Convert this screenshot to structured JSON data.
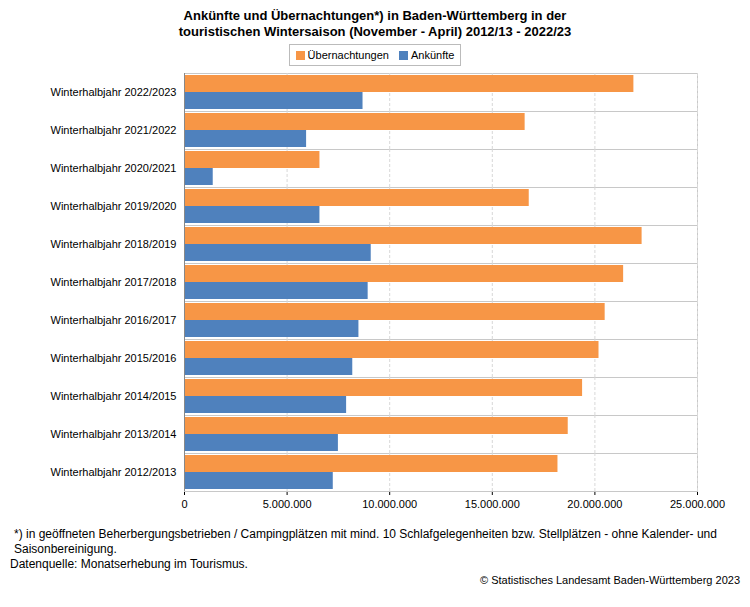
{
  "chart_data": {
    "type": "bar",
    "orientation": "horizontal",
    "title": "Ankünfte und Übernachtungen*) in Baden-Württemberg in der touristischen Wintersaison (November - April) 2012/13 - 2022/23",
    "categories": [
      "Winterhalbjahr 2022/2023",
      "Winterhalbjahr 2021/2022",
      "Winterhalbjahr 2020/2021",
      "Winterhalbjahr 2019/2020",
      "Winterhalbjahr 2018/2019",
      "Winterhalbjahr 2017/2018",
      "Winterhalbjahr 2016/2017",
      "Winterhalbjahr 2015/2016",
      "Winterhalbjahr 2014/2015",
      "Winterhalbjahr 2013/2014",
      "Winterhalbjahr 2012/2013"
    ],
    "series": [
      {
        "name": "Übernachtungen",
        "color": "#F79646",
        "values": [
          21900000,
          16600000,
          6600000,
          16800000,
          22300000,
          21400000,
          20500000,
          20200000,
          19400000,
          18700000,
          18200000
        ]
      },
      {
        "name": "Ankünfte",
        "color": "#4F81BD",
        "values": [
          8700000,
          5950000,
          1400000,
          6600000,
          9100000,
          8950000,
          8500000,
          8200000,
          7900000,
          7500000,
          7250000
        ]
      }
    ],
    "xlim": [
      0,
      25000000
    ],
    "xticks": [
      0,
      {
        "value": 5000000,
        "label": "5.000.000"
      },
      {
        "value": 10000000,
        "label": "10.000.000"
      },
      {
        "value": 15000000,
        "label": "15.000.000"
      },
      {
        "value": 20000000,
        "label": "20.000.000"
      },
      {
        "value": 25000000,
        "label": "25.000.000"
      }
    ],
    "grid": true,
    "legend": "top",
    "data_labels": false,
    "notes": [
      "*) in geöffneten Beherbergungsbetrieben / Campingplätzen mit mind. 10 Schlafgelegenheiten bzw. Stellplätzen - ohne Kalender- und Saisonbereinigung.",
      "Datenquelle: Monatserhebung im Tourismus."
    ],
    "source": "© Statistisches Landesamt Baden-Württemberg 2023"
  }
}
